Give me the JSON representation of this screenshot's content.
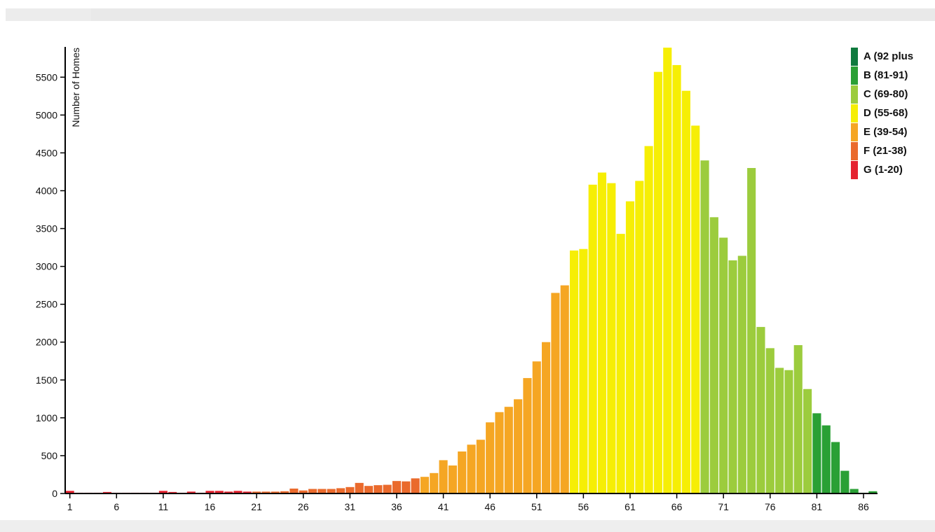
{
  "chart_data": {
    "type": "bar",
    "title": "",
    "xlabel": "",
    "ylabel": "Number of Homes",
    "xlim": [
      1,
      87
    ],
    "ylim": [
      0,
      5900
    ],
    "y_ticks": [
      0,
      500,
      1000,
      1500,
      2000,
      2500,
      3000,
      3500,
      4000,
      4500,
      5000,
      5500
    ],
    "x_ticks": [
      1,
      6,
      11,
      16,
      21,
      26,
      31,
      36,
      41,
      46,
      51,
      56,
      61,
      66,
      71,
      76,
      81,
      86
    ],
    "grid": false,
    "legend_position": "top-right",
    "x": [
      1,
      2,
      3,
      4,
      5,
      6,
      7,
      8,
      9,
      10,
      11,
      12,
      13,
      14,
      15,
      16,
      17,
      18,
      19,
      20,
      21,
      22,
      23,
      24,
      25,
      26,
      27,
      28,
      29,
      30,
      31,
      32,
      33,
      34,
      35,
      36,
      37,
      38,
      39,
      40,
      41,
      42,
      43,
      44,
      45,
      46,
      47,
      48,
      49,
      50,
      51,
      52,
      53,
      54,
      55,
      56,
      57,
      58,
      59,
      60,
      61,
      62,
      63,
      64,
      65,
      66,
      67,
      68,
      69,
      70,
      71,
      72,
      73,
      74,
      75,
      76,
      77,
      78,
      79,
      80,
      81,
      82,
      83,
      84,
      85,
      86,
      87
    ],
    "values": [
      35,
      10,
      10,
      10,
      20,
      10,
      10,
      10,
      10,
      10,
      35,
      20,
      10,
      25,
      10,
      35,
      35,
      25,
      35,
      25,
      25,
      25,
      25,
      30,
      65,
      40,
      60,
      60,
      60,
      70,
      85,
      140,
      100,
      110,
      115,
      165,
      160,
      200,
      220,
      270,
      440,
      370,
      555,
      645,
      710,
      940,
      1075,
      1145,
      1245,
      1525,
      1745,
      2000,
      2650,
      2750,
      3210,
      3230,
      4080,
      4240,
      4100,
      3430,
      3860,
      4130,
      4590,
      5570,
      5890,
      5660,
      5320,
      4860,
      4400,
      3650,
      3380,
      3080,
      3140,
      4300,
      2200,
      1920,
      1660,
      1630,
      1960,
      1380,
      1060,
      900,
      680,
      300,
      60,
      10,
      30
    ],
    "series_ranges": [
      {
        "name": "A (92 plus",
        "from": 92,
        "to": 200,
        "color": "#0f7a3e"
      },
      {
        "name": "B (81-91)",
        "from": 81,
        "to": 91,
        "color": "#2aa035"
      },
      {
        "name": "C (69-80)",
        "from": 69,
        "to": 80,
        "color": "#9ccc3d"
      },
      {
        "name": "D (55-68)",
        "from": 55,
        "to": 68,
        "color": "#f6ee05"
      },
      {
        "name": "E (39-54)",
        "from": 39,
        "to": 54,
        "color": "#f5a623"
      },
      {
        "name": "F (21-38)",
        "from": 21,
        "to": 38,
        "color": "#ea6a2c"
      },
      {
        "name": "G (1-20)",
        "from": 1,
        "to": 20,
        "color": "#e52330"
      }
    ]
  },
  "legend": {
    "items": [
      {
        "label": "A (92 plus",
        "color": "#0f7a3e"
      },
      {
        "label": "B (81-91)",
        "color": "#2aa035"
      },
      {
        "label": "C (69-80)",
        "color": "#9ccc3d"
      },
      {
        "label": "D (55-68)",
        "color": "#f6ee05"
      },
      {
        "label": "E (39-54)",
        "color": "#f5a623"
      },
      {
        "label": "F (21-38)",
        "color": "#ea6a2c"
      },
      {
        "label": "G (1-20)",
        "color": "#e52330"
      }
    ]
  }
}
